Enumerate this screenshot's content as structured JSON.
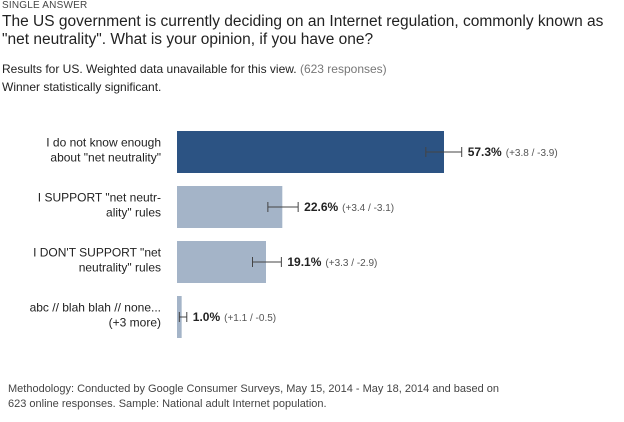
{
  "header": {
    "kicker": "SINGLE ANSWER",
    "question": "The US government is currently deciding on an Internet regulation, commonly known as \"net neutrality\". What is your opinion, if you have one?",
    "results_text": "Results for US. Weighted data unavailable for this view.",
    "responses_text": "(623 responses)",
    "significance_text": "Winner statistically significant."
  },
  "colors": {
    "winner_bar": "#2c5383",
    "other_bar": "#a4b4c8",
    "error_bar": "#444444"
  },
  "chart_data": {
    "type": "bar",
    "orientation": "horizontal",
    "title": "",
    "xlabel": "",
    "ylabel": "",
    "xlim": [
      0,
      100
    ],
    "categories": [
      [
        "I do not know enough",
        "about \"net neutrality\""
      ],
      [
        "I SUPPORT \"net neutr-",
        "ality\" rules"
      ],
      [
        "I DON'T SUPPORT \"net",
        "neutrality\" rules"
      ],
      [
        "abc // blah blah // none...",
        "(+3 more)"
      ]
    ],
    "values": [
      57.3,
      22.6,
      19.1,
      1.0
    ],
    "value_labels": [
      "57.3%",
      "22.6%",
      "19.1%",
      "1.0%"
    ],
    "error_plus": [
      3.8,
      3.4,
      3.3,
      1.1
    ],
    "error_minus": [
      3.9,
      3.1,
      2.9,
      0.5
    ],
    "error_labels": [
      "(+3.8 / -3.9)",
      "(+3.4 / -3.1)",
      "(+3.3 / -2.9)",
      "(+1.1 / -0.5)"
    ],
    "winner_index": 0
  },
  "footer": {
    "methodology": "Methodology: Conducted by Google Consumer Surveys, May 15, 2014 - May 18, 2014 and based on 623 online responses. Sample: National adult Internet population."
  }
}
